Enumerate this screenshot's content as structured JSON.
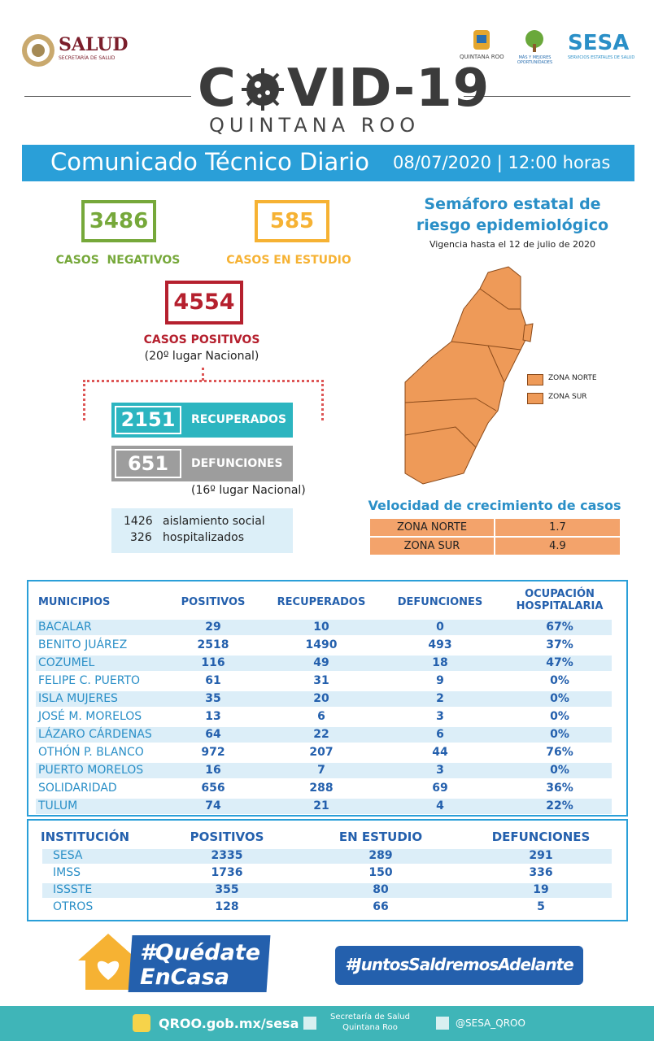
{
  "header": {
    "logo_left": "SALUD",
    "logo_left_sub": "SECRETARÍA DE SALUD",
    "state_logo": "QUINTANA ROO",
    "state_slogan": "MÁS Y MEJORES OPORTUNIDADES",
    "logo_right": "SESA",
    "logo_right_sub": "SERVICIOS ESTATALES DE SALUD",
    "title_start": "C",
    "title_end": "VID-19",
    "subtitle": "QUINTANA ROO"
  },
  "banner": {
    "title": "Comunicado Técnico Diario",
    "date": "08/07/2020 | 12:00 horas"
  },
  "summary": {
    "negativos": {
      "value": 3486,
      "label": "CASOS  NEGATIVOS"
    },
    "estudio": {
      "value": 585,
      "label": "CASOS EN ESTUDIO"
    },
    "positivos": {
      "value": 4554,
      "label": "CASOS POSITIVOS",
      "note": "(20º lugar Nacional)"
    },
    "recuperados": {
      "value": 2151,
      "label": "RECUPERADOS"
    },
    "defunciones": {
      "value": 651,
      "label": "DEFUNCIONES",
      "note": "(16º lugar Nacional)"
    },
    "aislamiento": {
      "value": 1426,
      "label": "aislamiento social"
    },
    "hospitalizados": {
      "value": 326,
      "label": "hospitalizados"
    }
  },
  "semaforo": {
    "title_line1": "Semáforo estatal de",
    "title_line2": "riesgo epidemiológico",
    "vigencia": "Vigencia hasta el 12 de julio de 2020",
    "legend": [
      "ZONA NORTE",
      "ZONA SUR"
    ]
  },
  "velocidad": {
    "title": "Velocidad de crecimiento de casos",
    "rows": [
      [
        "ZONA NORTE",
        1.7
      ],
      [
        "ZONA SUR",
        4.9
      ]
    ]
  },
  "municipios": {
    "headers": [
      "MUNICIPIOS",
      "POSITIVOS",
      "RECUPERADOS",
      "DEFUNCIONES",
      "OCUPACIÓN HOSPITALARIA"
    ],
    "rows": [
      [
        "BACALAR",
        29,
        10,
        0,
        "67%"
      ],
      [
        "BENITO JUÁREZ",
        2518,
        1490,
        493,
        "37%"
      ],
      [
        "COZUMEL",
        116,
        49,
        18,
        "47%"
      ],
      [
        "FELIPE C. PUERTO",
        61,
        31,
        9,
        "0%"
      ],
      [
        "ISLA MUJERES",
        35,
        20,
        2,
        "0%"
      ],
      [
        "JOSÉ M. MORELOS",
        13,
        6,
        3,
        "0%"
      ],
      [
        "LÁZARO CÁRDENAS",
        64,
        22,
        6,
        "0%"
      ],
      [
        "OTHÓN P. BLANCO",
        972,
        207,
        44,
        "76%"
      ],
      [
        "PUERTO MORELOS",
        16,
        7,
        3,
        "0%"
      ],
      [
        "SOLIDARIDAD",
        656,
        288,
        69,
        "36%"
      ],
      [
        "TULUM",
        74,
        21,
        4,
        "22%"
      ]
    ]
  },
  "instituciones": {
    "headers": [
      "INSTITUCIÓN",
      "POSITIVOS",
      "EN ESTUDIO",
      "DEFUNCIONES"
    ],
    "rows": [
      [
        "SESA",
        2335,
        289,
        291
      ],
      [
        "IMSS",
        1736,
        150,
        336
      ],
      [
        "ISSSTE",
        355,
        80,
        19
      ],
      [
        "OTROS",
        128,
        66,
        5
      ]
    ]
  },
  "footer": {
    "quedate_line1": "#Quédate",
    "quedate_line2": "EnCasa",
    "juntos": "#JuntosSaldremosAdelante",
    "web": "QROO.gob.mx/sesa",
    "facebook_line1": "Secretaría de Salud",
    "facebook_line2": "Quintana Roo",
    "twitter": "@SESA_QROO"
  }
}
